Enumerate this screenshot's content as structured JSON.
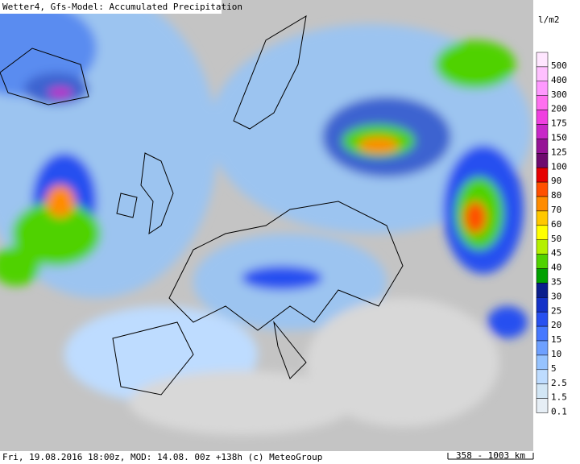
{
  "header": {
    "title": "Wetter4, Gfs-Model: Accumulated Precipitation"
  },
  "legend": {
    "unit": "l/m2",
    "items": [
      {
        "label": 500,
        "color": "#ffe6ff"
      },
      {
        "label": 400,
        "color": "#ffc0ff"
      },
      {
        "label": 300,
        "color": "#ff99ff"
      },
      {
        "label": 200,
        "color": "#ff70f0"
      },
      {
        "label": 175,
        "color": "#f040e0"
      },
      {
        "label": 150,
        "color": "#c828c8"
      },
      {
        "label": 125,
        "color": "#961496"
      },
      {
        "label": 100,
        "color": "#6e0a6e"
      },
      {
        "label": 90,
        "color": "#e60000"
      },
      {
        "label": 80,
        "color": "#ff5000"
      },
      {
        "label": 70,
        "color": "#ff8c00"
      },
      {
        "label": 60,
        "color": "#ffc800"
      },
      {
        "label": 50,
        "color": "#ffff00"
      },
      {
        "label": 45,
        "color": "#b4f000"
      },
      {
        "label": 40,
        "color": "#50d200"
      },
      {
        "label": 35,
        "color": "#00a000"
      },
      {
        "label": 30,
        "color": "#0a1e8c"
      },
      {
        "label": 25,
        "color": "#1432c8"
      },
      {
        "label": 20,
        "color": "#2850f0"
      },
      {
        "label": 15,
        "color": "#4678ff"
      },
      {
        "label": 10,
        "color": "#6ea0ff"
      },
      {
        "label": 5,
        "color": "#96c3ff"
      },
      {
        "label": 2.5,
        "color": "#bedcff"
      },
      {
        "label": 1.5,
        "color": "#d2e6f5"
      },
      {
        "label": 0.1,
        "color": "#e6eef5"
      }
    ]
  },
  "footer": {
    "info": "Fri, 19.08.2016 18:00z, MOD: 14.08. 00z +138h (c) MeteoGroup",
    "scale": "358 - 1003 km"
  }
}
